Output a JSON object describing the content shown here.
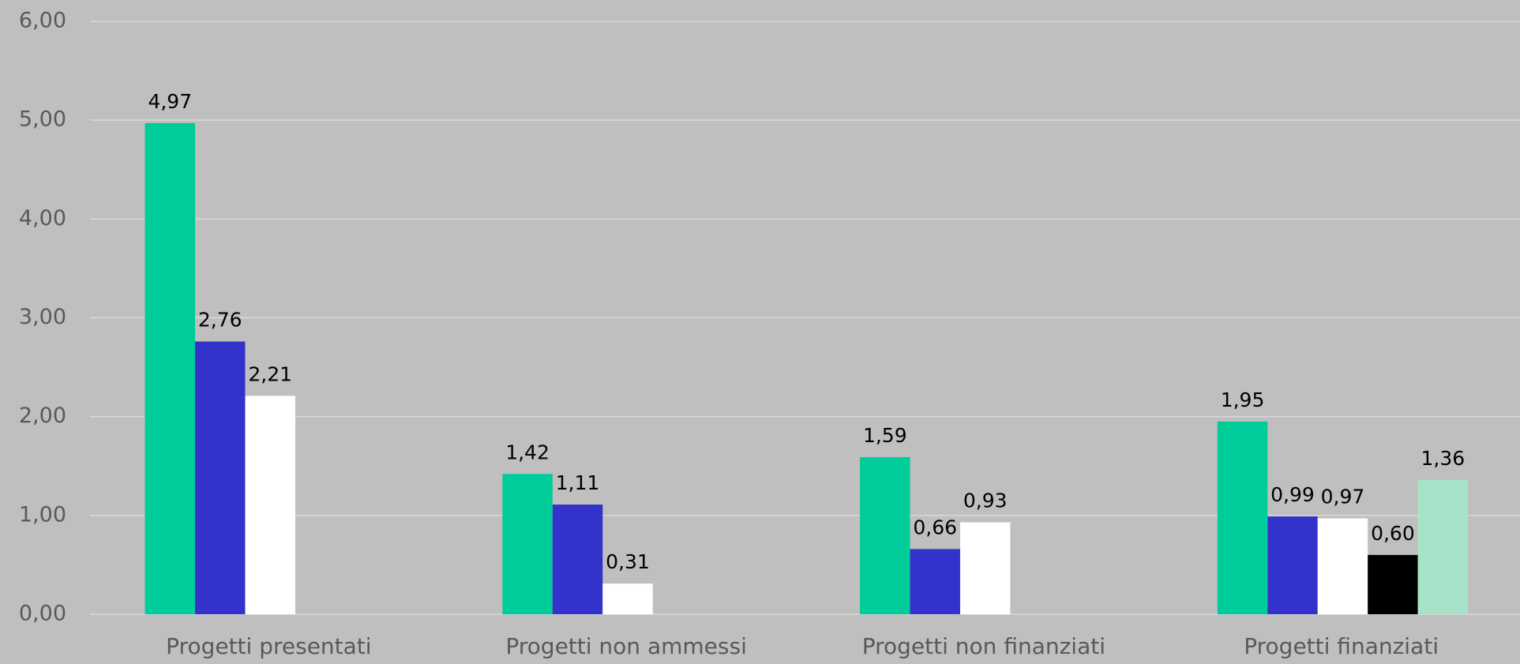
{
  "chart_data": {
    "type": "bar",
    "categories": [
      "Progetti presentati",
      "Progetti non ammessi",
      "Progetti non finanziati",
      "Progetti finanziati"
    ],
    "series": [
      {
        "color": "#00CC99",
        "values": [
          4.97,
          1.42,
          1.59,
          1.95
        ],
        "value_labels": [
          "4,97",
          "1,42",
          "1,59",
          "1,95"
        ]
      },
      {
        "color": "#3333CC",
        "values": [
          2.76,
          1.11,
          0.66,
          0.99
        ],
        "value_labels": [
          "2,76",
          "1,11",
          "0,66",
          "0,99"
        ]
      },
      {
        "color": "#FFFFFF",
        "values": [
          2.21,
          0.31,
          0.93,
          0.97
        ],
        "value_labels": [
          "2,21",
          "0,31",
          "0,93",
          "0,97"
        ]
      },
      {
        "color": "#000000",
        "values": [
          null,
          null,
          null,
          0.6
        ],
        "value_labels": [
          null,
          null,
          null,
          "0,60"
        ]
      },
      {
        "color": "#A8E2C8",
        "values": [
          null,
          null,
          null,
          1.36
        ],
        "value_labels": [
          null,
          null,
          null,
          "1,36"
        ]
      }
    ],
    "ylim": [
      0,
      6
    ],
    "yticks": [
      {
        "value": 0,
        "label": "0,00"
      },
      {
        "value": 1,
        "label": "1,00"
      },
      {
        "value": 2,
        "label": "2,00"
      },
      {
        "value": 3,
        "label": "3,00"
      },
      {
        "value": 4,
        "label": "4,00"
      },
      {
        "value": 5,
        "label": "5,00"
      },
      {
        "value": 6,
        "label": "6,00"
      }
    ],
    "grid": true
  }
}
